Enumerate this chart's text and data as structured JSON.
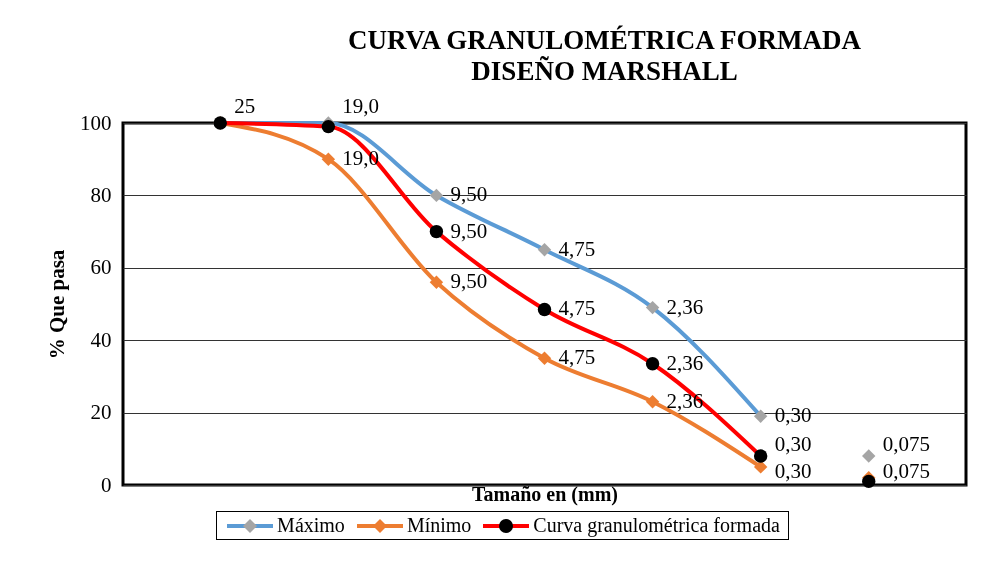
{
  "chart_data": {
    "type": "line",
    "title": "CURVA GRANULOMÉTRICA  FORMADA\nDISEÑO MARSHALL",
    "xlabel": "Tamaño en (mm)",
    "ylabel": "% Que pasa",
    "categories": [
      null,
      null,
      null,
      null,
      null,
      null,
      null
    ],
    "ylim": [
      0,
      100
    ],
    "yticks": [
      0,
      20,
      40,
      60,
      80,
      100
    ],
    "grid": "y",
    "legend": "bottom",
    "tick_labels": "y",
    "series": [
      {
        "name": "Máximo",
        "marker": "diamond",
        "color": "#5b9bd5",
        "colors": [
          "#a5a5a5",
          "#a5a5a5",
          "#a5a5a5",
          "#a5a5a5",
          "#a5a5a5",
          "#a5a5a5",
          null
        ],
        "values": [
          100,
          100,
          80,
          65,
          49,
          19,
          null
        ]
      },
      {
        "name": "Mínimo",
        "marker": "diamond",
        "color": "#ed7d31",
        "colors": [
          "#ed7d31",
          "#ed7d31",
          "#ed7d31",
          "#ed7d31",
          "#ed7d31",
          "#ed7d31",
          null
        ],
        "values": [
          100,
          90,
          56,
          35,
          23,
          5,
          null
        ]
      },
      {
        "name": "Curva granulométrica formada",
        "marker": "circle",
        "color": "#ff0000",
        "colors": [
          "#000000",
          "#000000",
          "#000000",
          "#000000",
          "#000000",
          "#000000",
          null
        ],
        "values": [
          100,
          99,
          70,
          48.5,
          33.5,
          8,
          null
        ]
      },
      {
        "type": "scatter",
        "marker": "diamond",
        "color": "#a5a5a5",
        "values": [
          null,
          null,
          null,
          null,
          null,
          null,
          8
        ]
      },
      {
        "type": "scatter",
        "marker": "diamond",
        "color": "#ed7d31",
        "values": [
          null,
          null,
          null,
          null,
          null,
          null,
          2
        ]
      },
      {
        "type": "scatter",
        "marker": "circle",
        "color": "#000000",
        "values": [
          null,
          null,
          null,
          null,
          null,
          null,
          1
        ]
      }
    ],
    "annotations": [
      "25",
      "19,0",
      "9,50",
      "4,75",
      "2,36",
      "0,30",
      "19,0",
      "9,50",
      "4,75",
      "2,36",
      "0,30",
      "9,50",
      "4,75",
      "2,36",
      "0,30",
      "0,075",
      "0,075"
    ]
  }
}
